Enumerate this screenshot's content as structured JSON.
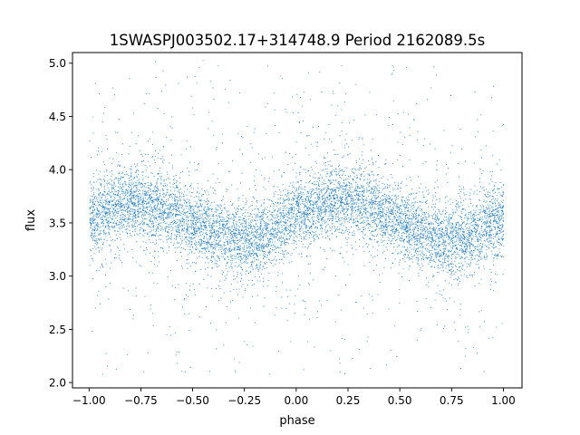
{
  "chart_data": {
    "type": "scatter",
    "title": "1SWASPJ003502.17+314748.9 Period 2162089.5s",
    "xlabel": "phase",
    "ylabel": "flux",
    "xlim": [
      -1.08,
      1.09
    ],
    "ylim": [
      1.95,
      5.1
    ],
    "xticks": [
      -1.0,
      -0.75,
      -0.5,
      -0.25,
      0.0,
      0.25,
      0.5,
      0.75,
      1.0
    ],
    "xtick_labels": [
      "−1.00",
      "−0.75",
      "−0.50",
      "−0.25",
      "0.00",
      "0.25",
      "0.50",
      "0.75",
      "1.00"
    ],
    "yticks": [
      2.0,
      2.5,
      3.0,
      3.5,
      4.0,
      4.5,
      5.0
    ],
    "ytick_labels": [
      "2.0",
      "2.5",
      "3.0",
      "3.5",
      "4.0",
      "4.5",
      "5.0"
    ],
    "grid": false,
    "legend": "none",
    "marker_color": "#1f77b4",
    "series": [
      {
        "x_range": [
          -1.0,
          1.0
        ],
        "trend": {
          "x": [
            -1.0,
            -0.9,
            -0.8,
            -0.7,
            -0.6,
            -0.5,
            -0.4,
            -0.3,
            -0.2,
            -0.1,
            0.0,
            0.1,
            0.2,
            0.3,
            0.4,
            0.5,
            0.6,
            0.7,
            0.8,
            0.9,
            1.0
          ],
          "y": [
            3.55,
            3.65,
            3.7,
            3.68,
            3.62,
            3.5,
            3.42,
            3.35,
            3.35,
            3.45,
            3.6,
            3.68,
            3.72,
            3.68,
            3.62,
            3.5,
            3.42,
            3.35,
            3.35,
            3.45,
            3.58
          ]
        },
        "y_min": 2.08,
        "y_max": 5.03
      }
    ]
  }
}
